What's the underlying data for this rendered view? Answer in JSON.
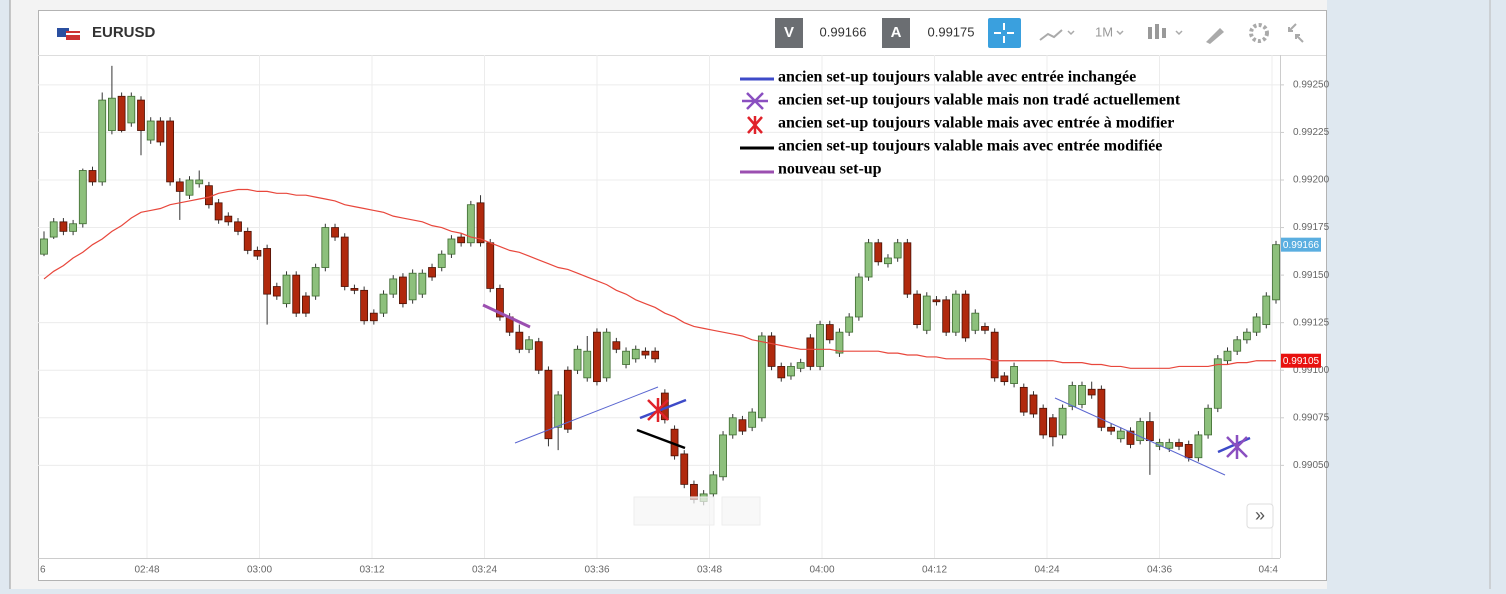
{
  "header": {
    "symbol": "EURUSD",
    "bid_label": "V",
    "bid": "0.99166",
    "ask_label": "A",
    "ask": "0.99175",
    "timeframe": "1M",
    "scroll_button": "»"
  },
  "legend_notes": [
    "ancien set-up toujours valable avec entrée inchangée",
    "ancien set-up toujours valable mais non tradé actuellement",
    "ancien set-up toujours valable mais avec entrée à modifier",
    "ancien set-up toujours valable mais avec entrée modifiée",
    "nouveau set-up"
  ],
  "chart_data": {
    "type": "candlestick",
    "up_color": "#8dc07c",
    "down_color": "#b0290d",
    "open": [
      0.99161,
      0.9917,
      0.99178,
      0.99173,
      0.99177,
      0.99205,
      0.99199,
      0.99226,
      0.99244,
      0.9923,
      0.99242,
      0.99221,
      0.99231,
      0.99231,
      0.99199,
      0.99192,
      0.99198,
      0.99197,
      0.99188,
      0.99181,
      0.99178,
      0.99173,
      0.99163,
      0.99164,
      0.99144,
      0.99135,
      0.9915,
      0.99139,
      0.99139,
      0.99154,
      0.99175,
      0.9917,
      0.99143,
      0.99142,
      0.9913,
      0.9913,
      0.9914,
      0.99149,
      0.99137,
      0.9914,
      0.99154,
      0.99154,
      0.99161,
      0.9917,
      0.99167,
      0.99188,
      0.99167,
      0.99143,
      0.99128,
      0.9912,
      0.99111,
      0.99115,
      0.991,
      0.9907,
      0.991,
      0.991,
      0.99096,
      0.9912,
      0.99096,
      0.99115,
      0.99103,
      0.99106,
      0.9911,
      0.9911,
      0.99088,
      0.99069,
      0.99056,
      0.9904,
      0.99031,
      0.99035,
      0.99044,
      0.99066,
      0.99074,
      0.9907,
      0.99075,
      0.99118,
      0.99102,
      0.99097,
      0.99101,
      0.99117,
      0.99102,
      0.99124,
      0.99109,
      0.9912,
      0.99128,
      0.99149,
      0.99167,
      0.99156,
      0.99159,
      0.99167,
      0.9914,
      0.99121,
      0.99137,
      0.99137,
      0.9912,
      0.9914,
      0.99121,
      0.99123,
      0.9912,
      0.99097,
      0.99093,
      0.99091,
      0.99087,
      0.9908,
      0.99075,
      0.99066,
      0.99081,
      0.99082,
      0.9909,
      0.9909,
      0.9907,
      0.99064,
      0.99068,
      0.99063,
      0.99073,
      0.9906,
      0.99059,
      0.99062,
      0.99061,
      0.99054,
      0.99066,
      0.9908,
      0.99105,
      0.9911,
      0.99116,
      0.9912,
      0.99124,
      0.99137
    ],
    "high": [
      0.99173,
      0.9918,
      0.9918,
      0.99179,
      0.99206,
      0.99207,
      0.99246,
      0.9926,
      0.99246,
      0.99246,
      0.99244,
      0.99233,
      0.99233,
      0.99233,
      0.99201,
      0.99202,
      0.99205,
      0.99199,
      0.9919,
      0.99183,
      0.9918,
      0.99175,
      0.99165,
      0.99166,
      0.99146,
      0.99152,
      0.99152,
      0.99141,
      0.99156,
      0.99177,
      0.99177,
      0.99172,
      0.99145,
      0.99144,
      0.99132,
      0.99142,
      0.9915,
      0.99151,
      0.99153,
      0.99153,
      0.99156,
      0.99163,
      0.99171,
      0.99172,
      0.99189,
      0.99192,
      0.99169,
      0.99145,
      0.9913,
      0.99124,
      0.99118,
      0.99117,
      0.99102,
      0.99089,
      0.99102,
      0.99113,
      0.99118,
      0.99122,
      0.99122,
      0.99117,
      0.99112,
      0.99113,
      0.99112,
      0.99112,
      0.9909,
      0.99071,
      0.99058,
      0.99042,
      0.99037,
      0.99047,
      0.99068,
      0.99077,
      0.99076,
      0.9908,
      0.9912,
      0.9912,
      0.99104,
      0.99104,
      0.99106,
      0.99119,
      0.99126,
      0.99126,
      0.99122,
      0.9913,
      0.99151,
      0.99169,
      0.99169,
      0.99161,
      0.99169,
      0.99169,
      0.99142,
      0.99141,
      0.99139,
      0.99139,
      0.99142,
      0.99142,
      0.99132,
      0.99125,
      0.99122,
      0.99099,
      0.99104,
      0.99093,
      0.99089,
      0.99082,
      0.99077,
      0.99082,
      0.99094,
      0.99094,
      0.99094,
      0.99092,
      0.99072,
      0.9907,
      0.9907,
      0.99075,
      0.99078,
      0.99064,
      0.99064,
      0.99064,
      0.99063,
      0.99068,
      0.99082,
      0.99108,
      0.99112,
      0.99118,
      0.99122,
      0.9913,
      0.99141,
      0.99168
    ],
    "low": [
      0.9916,
      0.99169,
      0.99171,
      0.99171,
      0.99175,
      0.99197,
      0.99197,
      0.99224,
      0.99225,
      0.99228,
      0.99213,
      0.99219,
      0.99218,
      0.99197,
      0.99179,
      0.9919,
      0.99196,
      0.99185,
      0.99177,
      0.99176,
      0.99171,
      0.99161,
      0.99158,
      0.99124,
      0.99137,
      0.99133,
      0.99128,
      0.99128,
      0.99137,
      0.99152,
      0.99168,
      0.99142,
      0.9914,
      0.99124,
      0.99124,
      0.99128,
      0.99138,
      0.99133,
      0.99135,
      0.99138,
      0.99147,
      0.99152,
      0.99159,
      0.99165,
      0.99165,
      0.99165,
      0.99141,
      0.99126,
      0.99118,
      0.99109,
      0.99109,
      0.99098,
      0.9906,
      0.99058,
      0.99067,
      0.99098,
      0.99094,
      0.99092,
      0.99094,
      0.99109,
      0.99101,
      0.99104,
      0.99106,
      0.99104,
      0.99072,
      0.99053,
      0.99038,
      0.9903,
      0.99029,
      0.99033,
      0.99042,
      0.99064,
      0.99066,
      0.99068,
      0.99073,
      0.991,
      0.99094,
      0.99095,
      0.99099,
      0.991,
      0.991,
      0.99114,
      0.99107,
      0.99118,
      0.99126,
      0.99147,
      0.99155,
      0.99154,
      0.99157,
      0.99138,
      0.99122,
      0.99119,
      0.99134,
      0.99118,
      0.99118,
      0.99115,
      0.99119,
      0.99119,
      0.99094,
      0.99092,
      0.99091,
      0.99076,
      0.99075,
      0.99064,
      0.9906,
      0.99064,
      0.99079,
      0.9908,
      0.99085,
      0.99068,
      0.99066,
      0.99062,
      0.99059,
      0.99061,
      0.99045,
      0.99058,
      0.99057,
      0.99058,
      0.99052,
      0.99052,
      0.99064,
      0.99078,
      0.99103,
      0.99108,
      0.99114,
      0.99118,
      0.99122,
      0.99135
    ],
    "close": [
      0.99169,
      0.99178,
      0.99173,
      0.99177,
      0.99205,
      0.99199,
      0.99242,
      0.99243,
      0.99226,
      0.99244,
      0.99226,
      0.99231,
      0.9922,
      0.99199,
      0.99194,
      0.992,
      0.992,
      0.99187,
      0.99179,
      0.99178,
      0.99173,
      0.99163,
      0.9916,
      0.9914,
      0.99139,
      0.9915,
      0.9913,
      0.9913,
      0.99154,
      0.99175,
      0.9917,
      0.99144,
      0.99142,
      0.99126,
      0.99126,
      0.9914,
      0.99148,
      0.99135,
      0.99151,
      0.99151,
      0.99149,
      0.99161,
      0.99169,
      0.99167,
      0.99187,
      0.99167,
      0.99143,
      0.99128,
      0.9912,
      0.99111,
      0.99116,
      0.991,
      0.99064,
      0.99087,
      0.99069,
      0.99111,
      0.9911,
      0.99094,
      0.9912,
      0.99111,
      0.9911,
      0.99111,
      0.99108,
      0.99106,
      0.99074,
      0.99055,
      0.9904,
      0.99032,
      0.99035,
      0.99045,
      0.99066,
      0.99075,
      0.99068,
      0.99078,
      0.99118,
      0.99102,
      0.99096,
      0.99102,
      0.99104,
      0.99102,
      0.99124,
      0.99116,
      0.9912,
      0.99128,
      0.99149,
      0.99167,
      0.99157,
      0.99159,
      0.99167,
      0.9914,
      0.99124,
      0.99139,
      0.99136,
      0.9912,
      0.9914,
      0.99117,
      0.9913,
      0.99121,
      0.99096,
      0.99094,
      0.99102,
      0.99078,
      0.99077,
      0.99066,
      0.99065,
      0.9908,
      0.99092,
      0.99092,
      0.99087,
      0.9907,
      0.99068,
      0.99068,
      0.99061,
      0.99073,
      0.99063,
      0.99062,
      0.99062,
      0.9906,
      0.99054,
      0.99066,
      0.9908,
      0.99106,
      0.9911,
      0.99116,
      0.9912,
      0.99128,
      0.99139,
      0.99166
    ],
    "moving_average": {
      "color": "#e8473c",
      "values": [
        0.99148,
        0.99152,
        0.99155,
        0.99159,
        0.99162,
        0.99166,
        0.99169,
        0.99173,
        0.99176,
        0.9918,
        0.99183,
        0.99184,
        0.99185,
        0.99187,
        0.99188,
        0.99189,
        0.9919,
        0.99191,
        0.99193,
        0.99194,
        0.99195,
        0.99195,
        0.99194,
        0.99194,
        0.99193,
        0.99193,
        0.99192,
        0.99192,
        0.99191,
        0.9919,
        0.99189,
        0.99187,
        0.99186,
        0.99185,
        0.99184,
        0.99183,
        0.99181,
        0.9918,
        0.99179,
        0.99178,
        0.99176,
        0.99175,
        0.99173,
        0.99172,
        0.9917,
        0.99169,
        0.99167,
        0.99165,
        0.99163,
        0.99162,
        0.9916,
        0.99158,
        0.99156,
        0.99154,
        0.99153,
        0.99151,
        0.99149,
        0.99147,
        0.99145,
        0.99142,
        0.9914,
        0.99137,
        0.99135,
        0.99133,
        0.9913,
        0.99128,
        0.99125,
        0.99123,
        0.99122,
        0.99121,
        0.9912,
        0.99119,
        0.99118,
        0.99116,
        0.99115,
        0.99114,
        0.99113,
        0.99112,
        0.99111,
        0.99111,
        0.99111,
        0.99111,
        0.9911,
        0.9911,
        0.9911,
        0.9911,
        0.9911,
        0.99109,
        0.99109,
        0.99108,
        0.99108,
        0.99107,
        0.99107,
        0.99106,
        0.99106,
        0.99106,
        0.99106,
        0.99106,
        0.99105,
        0.99105,
        0.99105,
        0.99105,
        0.99105,
        0.99105,
        0.99105,
        0.99104,
        0.99104,
        0.99104,
        0.99103,
        0.99103,
        0.99102,
        0.99102,
        0.99101,
        0.99101,
        0.99101,
        0.99101,
        0.99101,
        0.99102,
        0.99102,
        0.99102,
        0.99102,
        0.99103,
        0.99103,
        0.99104,
        0.99104,
        0.99105,
        0.99105,
        0.99105
      ]
    },
    "ylim": [
      0.990013,
      0.992657
    ],
    "yticks": [
      {
        "value": 0.9905,
        "label": "0.99050"
      },
      {
        "value": 0.99075,
        "label": "0.99075"
      },
      {
        "value": 0.991,
        "label": "0.99100"
      },
      {
        "value": 0.99125,
        "label": "0.99125"
      },
      {
        "value": 0.9915,
        "label": "0.99150"
      },
      {
        "value": 0.99175,
        "label": "0.99175"
      },
      {
        "value": 0.992,
        "label": "0.99200"
      },
      {
        "value": 0.99225,
        "label": "0.99225"
      },
      {
        "value": 0.9925,
        "label": "0.99250"
      }
    ],
    "xticks": [
      "6",
      "02:48",
      "03:00",
      "03:12",
      "03:24",
      "03:36",
      "03:48",
      "04:00",
      "04:12",
      "04:24",
      "04:36",
      "04:4"
    ],
    "grid": true
  }
}
